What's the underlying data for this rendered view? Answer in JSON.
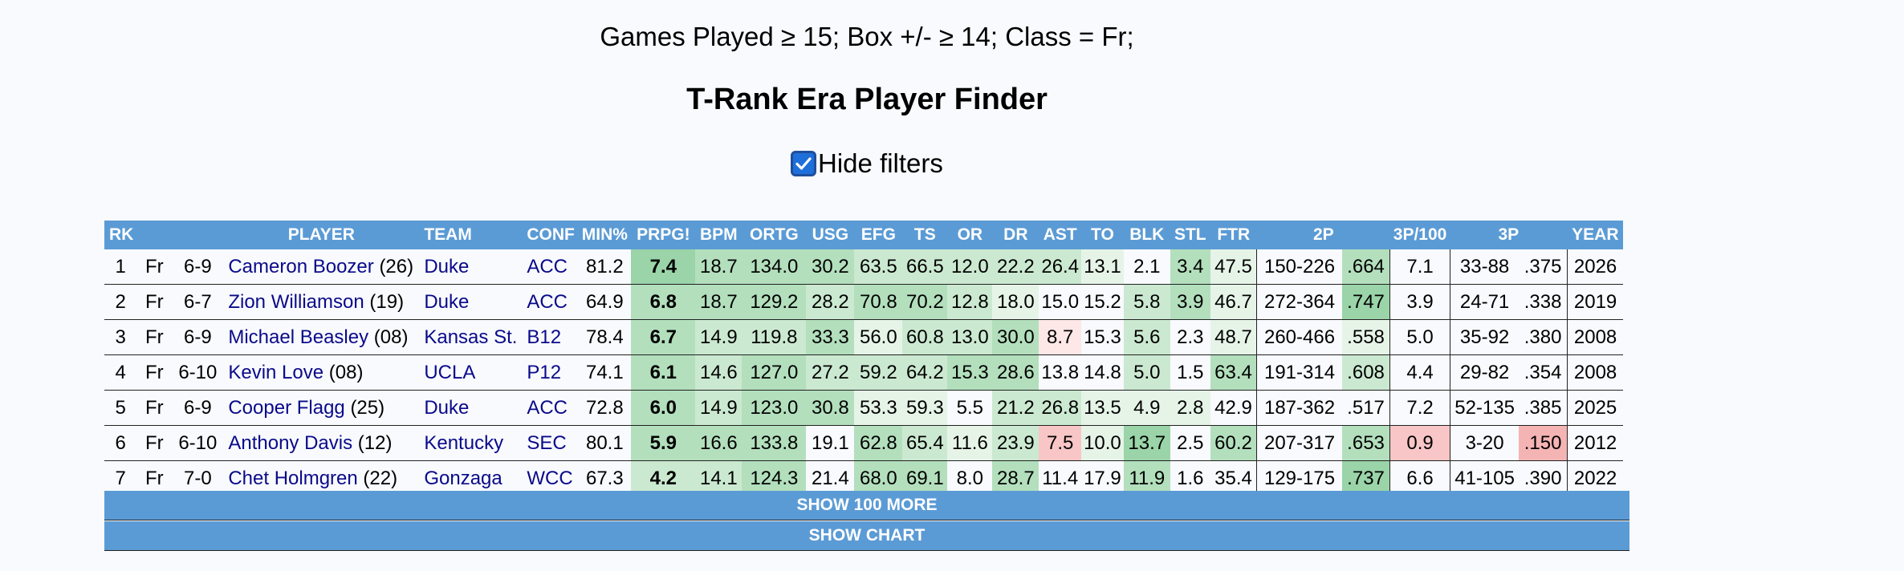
{
  "filter_summary": "Games Played ≥ 15; Box +/- ≥ 14; Class = Fr;",
  "title": "T-Rank Era Player Finder",
  "hide_filters": {
    "label": "Hide filters",
    "checked": true
  },
  "table": {
    "headers": [
      "RK",
      "PLAYER",
      "TEAM",
      "CONF",
      "MIN%",
      "PRPG!",
      "BPM",
      "ORTG",
      "USG",
      "EFG",
      "TS",
      "OR",
      "DR",
      "AST",
      "TO",
      "BLK",
      "STL",
      "FTR",
      "2P",
      "3P/100",
      "3P",
      "YEAR"
    ],
    "rows": [
      {
        "rk": "1",
        "cls": "Fr",
        "ht": "6-9",
        "name": "Cameron Boozer",
        "num": "(26)",
        "team": "Duke",
        "conf": "ACC",
        "min": "81.2",
        "prpg": "7.4",
        "bpm": "18.7",
        "ortg": "134.0",
        "usg": "30.2",
        "efg": "63.5",
        "ts": "66.5",
        "or": "12.0",
        "dr": "22.2",
        "ast": "26.4",
        "to": "13.1",
        "blk": "2.1",
        "stl": "3.4",
        "ftr": "47.5",
        "p2m": "150-226",
        "p2pct": ".664",
        "p3r": "7.1",
        "p3m": "33-88",
        "p3pct": ".375",
        "year": "2026"
      },
      {
        "rk": "2",
        "cls": "Fr",
        "ht": "6-7",
        "name": "Zion Williamson",
        "num": "(19)",
        "team": "Duke",
        "conf": "ACC",
        "min": "64.9",
        "prpg": "6.8",
        "bpm": "18.7",
        "ortg": "129.2",
        "usg": "28.2",
        "efg": "70.8",
        "ts": "70.2",
        "or": "12.8",
        "dr": "18.0",
        "ast": "15.0",
        "to": "15.2",
        "blk": "5.8",
        "stl": "3.9",
        "ftr": "46.7",
        "p2m": "272-364",
        "p2pct": ".747",
        "p3r": "3.9",
        "p3m": "24-71",
        "p3pct": ".338",
        "year": "2019"
      },
      {
        "rk": "3",
        "cls": "Fr",
        "ht": "6-9",
        "name": "Michael Beasley",
        "num": "(08)",
        "team": "Kansas St.",
        "conf": "B12",
        "min": "78.4",
        "prpg": "6.7",
        "bpm": "14.9",
        "ortg": "119.8",
        "usg": "33.3",
        "efg": "56.0",
        "ts": "60.8",
        "or": "13.0",
        "dr": "30.0",
        "ast": "8.7",
        "to": "15.3",
        "blk": "5.6",
        "stl": "2.3",
        "ftr": "48.7",
        "p2m": "260-466",
        "p2pct": ".558",
        "p3r": "5.0",
        "p3m": "35-92",
        "p3pct": ".380",
        "year": "2008"
      },
      {
        "rk": "4",
        "cls": "Fr",
        "ht": "6-10",
        "name": "Kevin Love",
        "num": "(08)",
        "team": "UCLA",
        "conf": "P12",
        "min": "74.1",
        "prpg": "6.1",
        "bpm": "14.6",
        "ortg": "127.0",
        "usg": "27.2",
        "efg": "59.2",
        "ts": "64.2",
        "or": "15.3",
        "dr": "28.6",
        "ast": "13.8",
        "to": "14.8",
        "blk": "5.0",
        "stl": "1.5",
        "ftr": "63.4",
        "p2m": "191-314",
        "p2pct": ".608",
        "p3r": "4.4",
        "p3m": "29-82",
        "p3pct": ".354",
        "year": "2008"
      },
      {
        "rk": "5",
        "cls": "Fr",
        "ht": "6-9",
        "name": "Cooper Flagg",
        "num": "(25)",
        "team": "Duke",
        "conf": "ACC",
        "min": "72.8",
        "prpg": "6.0",
        "bpm": "14.9",
        "ortg": "123.0",
        "usg": "30.8",
        "efg": "53.3",
        "ts": "59.3",
        "or": "5.5",
        "dr": "21.2",
        "ast": "26.8",
        "to": "13.5",
        "blk": "4.9",
        "stl": "2.8",
        "ftr": "42.9",
        "p2m": "187-362",
        "p2pct": ".517",
        "p3r": "7.2",
        "p3m": "52-135",
        "p3pct": ".385",
        "year": "2025"
      },
      {
        "rk": "6",
        "cls": "Fr",
        "ht": "6-10",
        "name": "Anthony Davis",
        "num": "(12)",
        "team": "Kentucky",
        "conf": "SEC",
        "min": "80.1",
        "prpg": "5.9",
        "bpm": "16.6",
        "ortg": "133.8",
        "usg": "19.1",
        "efg": "62.8",
        "ts": "65.4",
        "or": "11.6",
        "dr": "23.9",
        "ast": "7.5",
        "to": "10.0",
        "blk": "13.7",
        "stl": "2.5",
        "ftr": "60.2",
        "p2m": "207-317",
        "p2pct": ".653",
        "p3r": "0.9",
        "p3m": "3-20",
        "p3pct": ".150",
        "year": "2012"
      },
      {
        "rk": "7",
        "cls": "Fr",
        "ht": "7-0",
        "name": "Chet Holmgren",
        "num": "(22)",
        "team": "Gonzaga",
        "conf": "WCC",
        "min": "67.3",
        "prpg": "4.2",
        "bpm": "14.1",
        "ortg": "124.3",
        "usg": "21.4",
        "efg": "68.0",
        "ts": "69.1",
        "or": "8.0",
        "dr": "28.7",
        "ast": "11.4",
        "to": "17.9",
        "blk": "11.9",
        "stl": "1.6",
        "ftr": "35.4",
        "p2m": "129-175",
        "p2pct": ".737",
        "p3r": "6.6",
        "p3m": "41-105",
        "p3pct": ".390",
        "year": "2022"
      }
    ]
  },
  "buttons": {
    "show_more": "SHOW 100 MORE",
    "show_chart": "SHOW CHART"
  }
}
